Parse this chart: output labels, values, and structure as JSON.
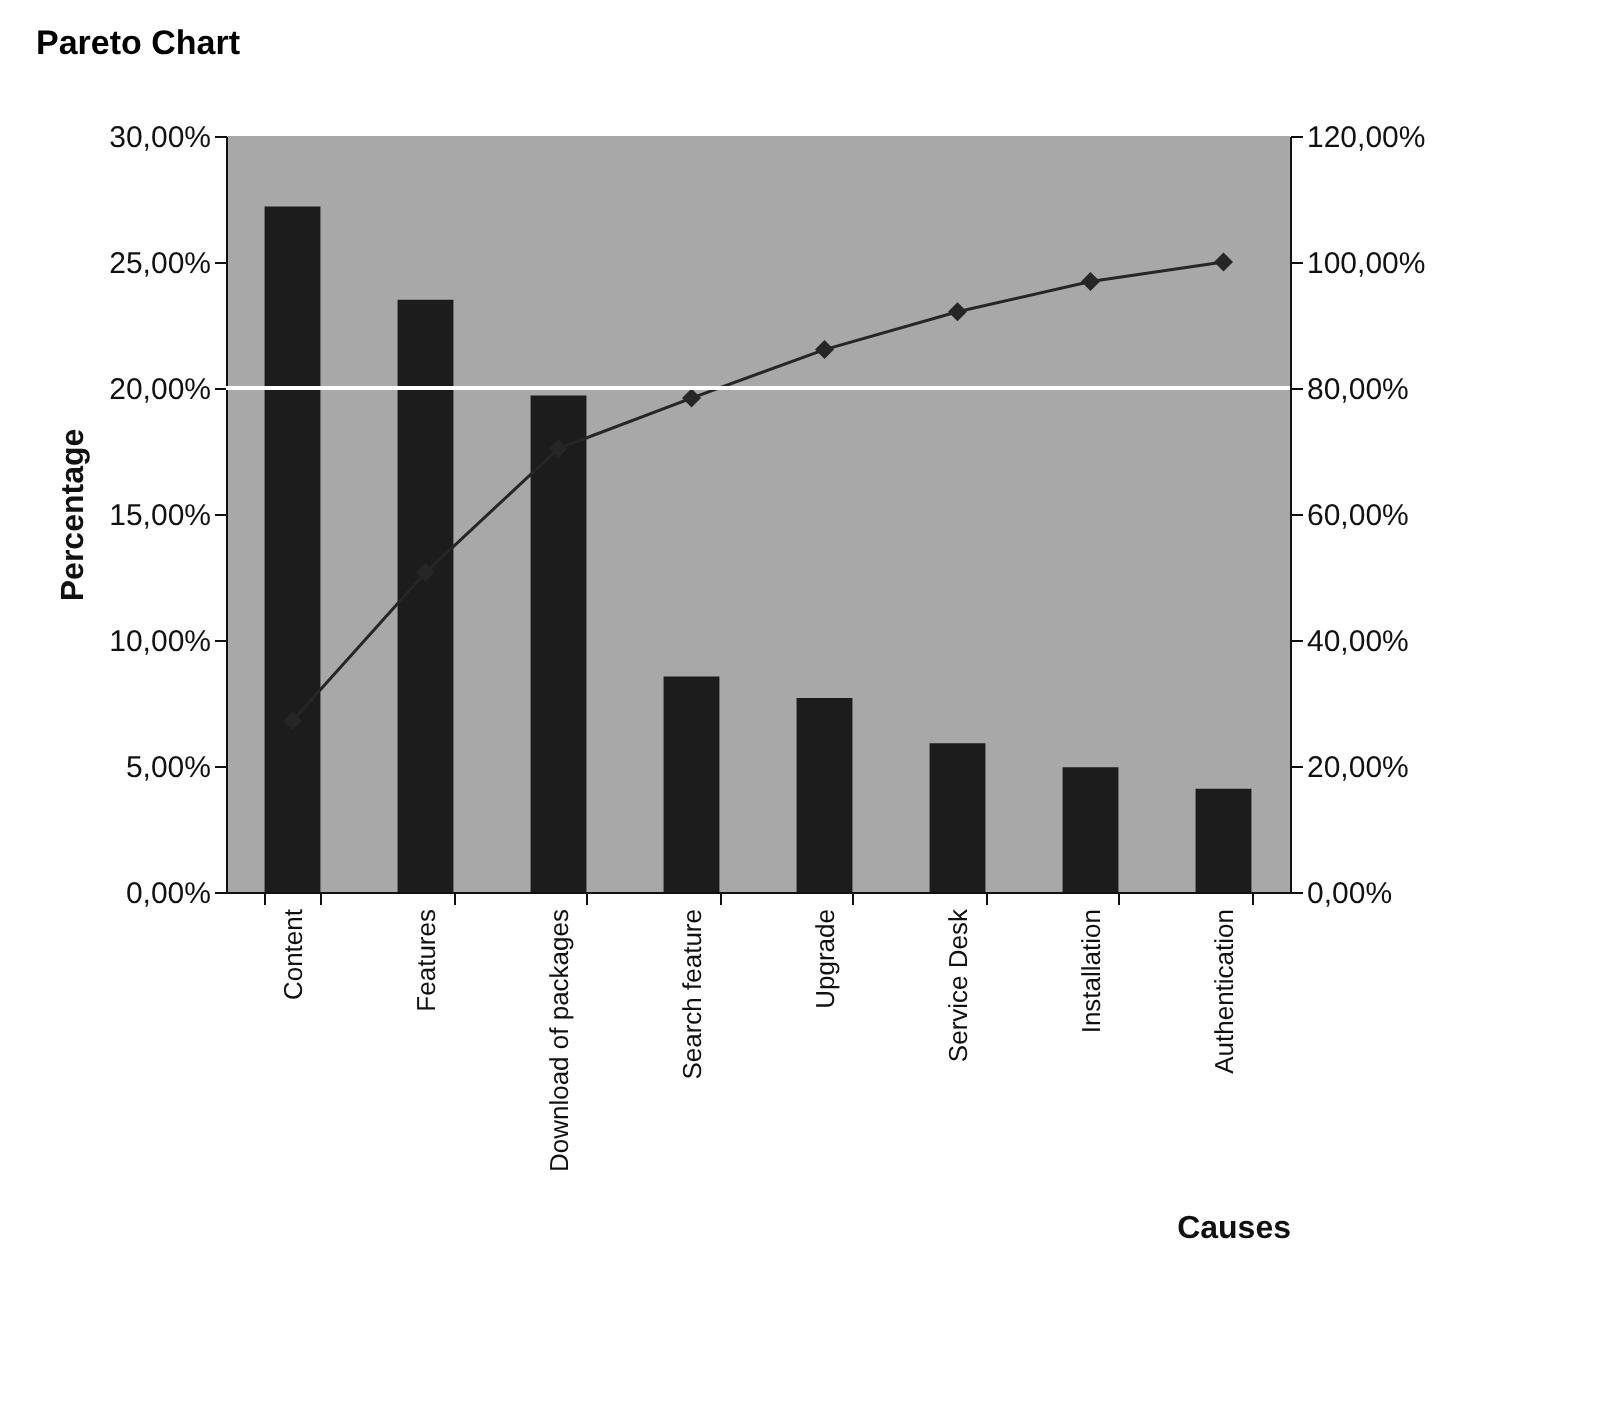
{
  "chart_data": {
    "type": "bar",
    "title": "Pareto Chart",
    "xlabel": "Causes",
    "ylabel": "Percentage",
    "categories": [
      "Content",
      "Features",
      "Download of packages",
      "Search feature",
      "Upgrade",
      "Service Desk",
      "Installation",
      "Authentication"
    ],
    "series": [
      {
        "color": "#1c1c1c",
        "values": [
          27.2,
          23.5,
          19.7,
          8.55,
          7.7,
          5.9,
          4.95,
          4.1
        ]
      },
      {
        "type": "line",
        "axis": "y2",
        "color": "#262626",
        "marker": "diamond",
        "values": [
          27.2,
          50.7,
          70.4,
          78.4,
          86.1,
          92.1,
          96.9,
          100
        ]
      }
    ],
    "ylim": [
      0,
      30
    ],
    "yticks": [
      {
        "value": 0,
        "label": "0,00%"
      },
      {
        "value": 5,
        "label": "5,00%"
      },
      {
        "value": 10,
        "label": "10,00%"
      },
      {
        "value": 15,
        "label": "15,00%"
      },
      {
        "value": 20,
        "label": "20,00%"
      },
      {
        "value": 25,
        "label": "25,00%"
      },
      {
        "value": 30,
        "label": "30,00%"
      }
    ],
    "y2lim": [
      0,
      120
    ],
    "y2ticks": [
      {
        "value": 0,
        "label": "0,00%"
      },
      {
        "value": 20,
        "label": "20,00%"
      },
      {
        "value": 40,
        "label": "40,00%"
      },
      {
        "value": 60,
        "label": "60,00%"
      },
      {
        "value": 80,
        "label": "80,00%"
      },
      {
        "value": 100,
        "label": "100,00%"
      },
      {
        "value": 120,
        "label": "120,00%"
      }
    ],
    "ref_lines": [
      {
        "axis": "y2",
        "value": 80,
        "color": "#ffffff"
      }
    ],
    "grid": false
  }
}
